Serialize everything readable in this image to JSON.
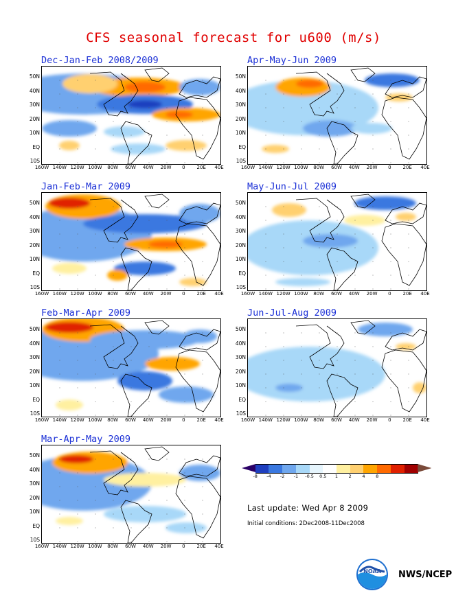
{
  "title": "CFS seasonal forecast for u600 (m/s)",
  "panels": [
    {
      "title": "Dec-Jan-Feb 2008/2009"
    },
    {
      "title": "Apr-May-Jun 2009"
    },
    {
      "title": "Jan-Feb-Mar 2009"
    },
    {
      "title": "May-Jun-Jul 2009"
    },
    {
      "title": "Feb-Mar-Apr 2009"
    },
    {
      "title": "Jun-Jul-Aug 2009"
    },
    {
      "title": "Mar-Apr-May 2009"
    }
  ],
  "y_ticks": [
    "50N",
    "40N",
    "30N",
    "20N",
    "10N",
    "EQ",
    "10S"
  ],
  "x_ticks": [
    "160W",
    "140W",
    "120W",
    "100W",
    "80W",
    "60W",
    "40W",
    "20W",
    "0",
    "20E",
    "40E"
  ],
  "legend": {
    "labels": [
      "-8",
      "-4",
      "-2",
      "-1",
      "-0.5",
      "0.5",
      "1",
      "2",
      "4",
      "8"
    ],
    "colors": [
      "#2a0066",
      "#1f3fbf",
      "#3a78e0",
      "#6fa7ee",
      "#a8d8f8",
      "#e6f5fd",
      "#ffffff",
      "#fff0a0",
      "#ffd070",
      "#ffa500",
      "#ff6a00",
      "#e02000",
      "#a00000",
      "#7a4a3a"
    ]
  },
  "last_update": "Last update: Wed Apr 8 2009",
  "initial_conditions": "Initial conditions: 2Dec2008-11Dec2008",
  "credit": "NWS/NCEP",
  "logo_text": "NOAA"
}
